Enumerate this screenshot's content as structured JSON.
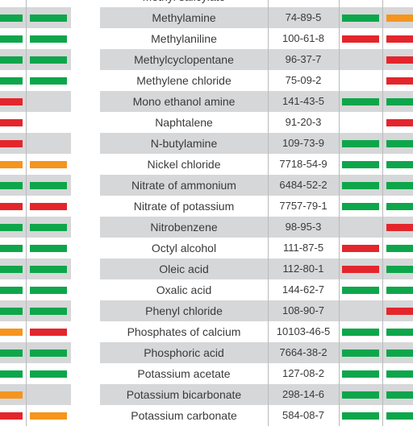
{
  "colors": {
    "green": "#0ea64b",
    "red": "#e3262c",
    "orange": "#f5951e",
    "shade": "#d6d7d8",
    "text": "#3a3a3a"
  },
  "rows": [
    {
      "name": "Methyl salicylate",
      "cas": "",
      "l1": "",
      "l2": "",
      "r1": "",
      "r2": ""
    },
    {
      "name": "Methylamine",
      "cas": "74-89-5",
      "l1": "green",
      "l2": "green",
      "r1": "green",
      "r2": "orange"
    },
    {
      "name": "Methylaniline",
      "cas": "100-61-8",
      "l1": "green",
      "l2": "green",
      "r1": "red",
      "r2": "red"
    },
    {
      "name": "Methylcyclopentane",
      "cas": "96-37-7",
      "l1": "green",
      "l2": "green",
      "r1": "",
      "r2": "red"
    },
    {
      "name": "Methylene chloride",
      "cas": "75-09-2",
      "l1": "green",
      "l2": "green",
      "r1": "",
      "r2": "red"
    },
    {
      "name": "Mono ethanol amine",
      "cas": "141-43-5",
      "l1": "red",
      "l2": "",
      "r1": "green",
      "r2": "green"
    },
    {
      "name": "Naphtalene",
      "cas": "91-20-3",
      "l1": "red",
      "l2": "",
      "r1": "",
      "r2": "red"
    },
    {
      "name": "N-butylamine",
      "cas": "109-73-9",
      "l1": "red",
      "l2": "",
      "r1": "green",
      "r2": "green"
    },
    {
      "name": "Nickel chloride",
      "cas": "7718-54-9",
      "l1": "orange",
      "l2": "orange",
      "r1": "green",
      "r2": "green"
    },
    {
      "name": "Nitrate of ammonium",
      "cas": "6484-52-2",
      "l1": "green",
      "l2": "green",
      "r1": "green",
      "r2": "green"
    },
    {
      "name": "Nitrate of potassium",
      "cas": "7757-79-1",
      "l1": "red",
      "l2": "red",
      "r1": "green",
      "r2": "green"
    },
    {
      "name": "Nitrobenzene",
      "cas": "98-95-3",
      "l1": "green",
      "l2": "green",
      "r1": "",
      "r2": "red"
    },
    {
      "name": "Octyl alcohol",
      "cas": "111-87-5",
      "l1": "green",
      "l2": "green",
      "r1": "red",
      "r2": "green"
    },
    {
      "name": "Oleic acid",
      "cas": "112-80-1",
      "l1": "green",
      "l2": "green",
      "r1": "red",
      "r2": "green"
    },
    {
      "name": "Oxalic acid",
      "cas": "144-62-7",
      "l1": "green",
      "l2": "green",
      "r1": "green",
      "r2": "green"
    },
    {
      "name": "Phenyl chloride",
      "cas": "108-90-7",
      "l1": "green",
      "l2": "green",
      "r1": "",
      "r2": "red"
    },
    {
      "name": "Phosphates of calcium",
      "cas": "10103-46-5",
      "l1": "orange",
      "l2": "red",
      "r1": "green",
      "r2": "green"
    },
    {
      "name": "Phosphoric acid",
      "cas": "7664-38-2",
      "l1": "green",
      "l2": "green",
      "r1": "green",
      "r2": "green"
    },
    {
      "name": "Potassium acetate",
      "cas": "127-08-2",
      "l1": "green",
      "l2": "green",
      "r1": "green",
      "r2": "green"
    },
    {
      "name": "Potassium bicarbonate",
      "cas": "298-14-6",
      "l1": "orange",
      "l2": "",
      "r1": "green",
      "r2": "green"
    },
    {
      "name": "Potassium carbonate",
      "cas": "584-08-7",
      "l1": "red",
      "l2": "orange",
      "r1": "green",
      "r2": "green"
    }
  ]
}
